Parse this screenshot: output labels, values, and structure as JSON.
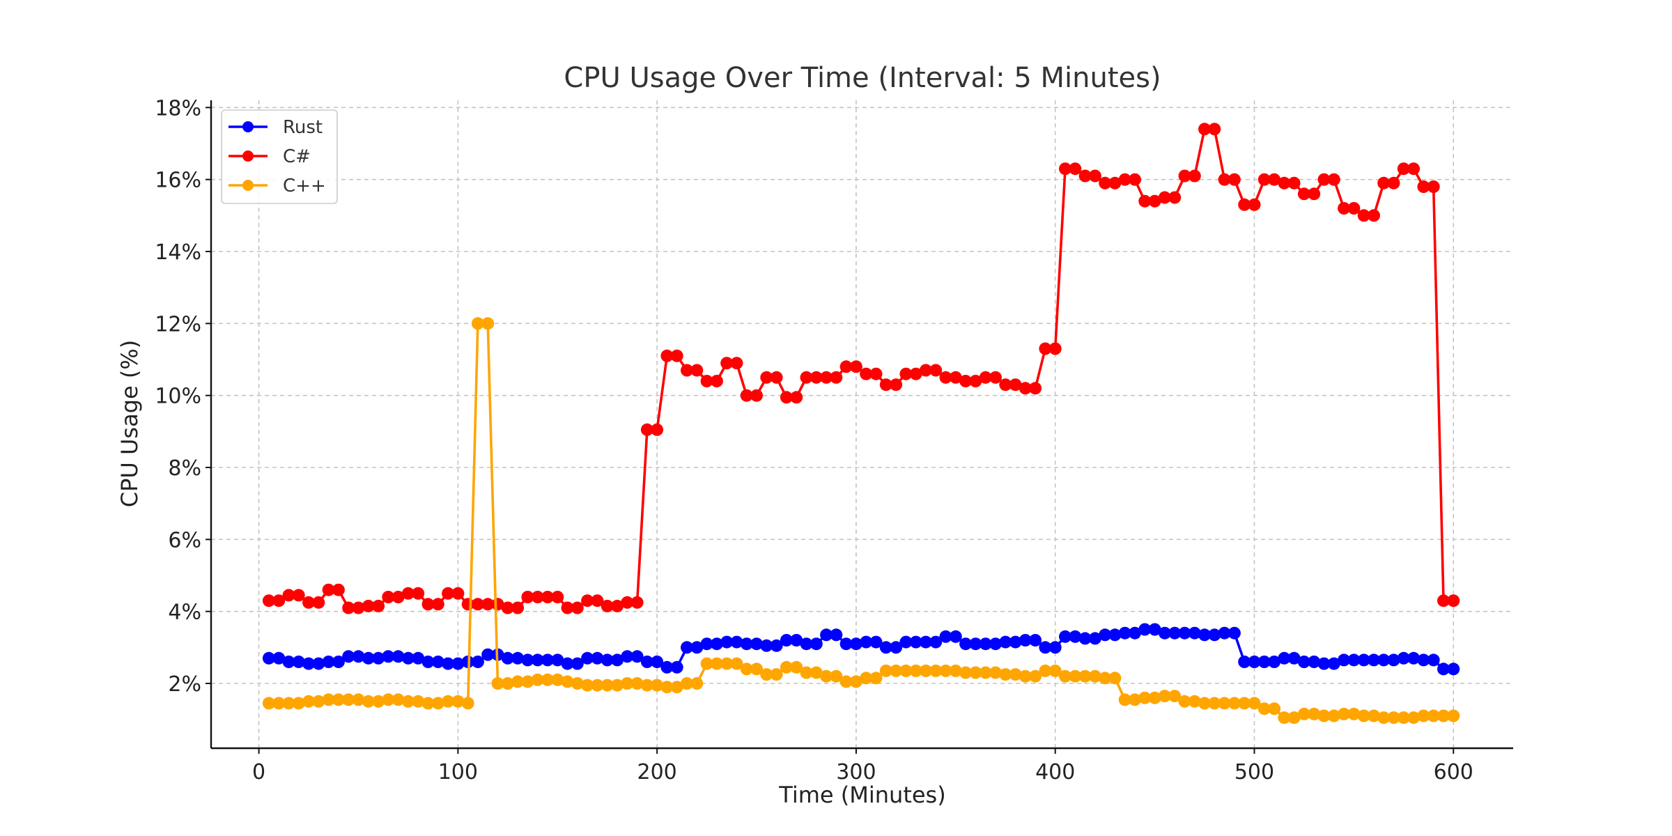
{
  "chart_data": {
    "type": "line",
    "title": "CPU Usage Over Time (Interval: 5 Minutes)",
    "xlabel": "Time (Minutes)",
    "ylabel": "CPU Usage (%)",
    "xlim": [
      -24,
      630
    ],
    "ylim": [
      0.2,
      18.2
    ],
    "x_ticks": [
      0,
      100,
      200,
      300,
      400,
      500,
      600
    ],
    "x_tick_labels": [
      "0",
      "100",
      "200",
      "300",
      "400",
      "500",
      "600"
    ],
    "y_ticks": [
      2,
      4,
      6,
      8,
      10,
      12,
      14,
      16,
      18
    ],
    "y_tick_labels": [
      "2%",
      "4%",
      "6%",
      "8%",
      "10%",
      "12%",
      "14%",
      "16%",
      "18%"
    ],
    "grid": true,
    "legend_position": "top-left",
    "x": [
      5,
      10,
      15,
      20,
      25,
      30,
      35,
      40,
      45,
      50,
      55,
      60,
      65,
      70,
      75,
      80,
      85,
      90,
      95,
      100,
      105,
      110,
      115,
      120,
      125,
      130,
      135,
      140,
      145,
      150,
      155,
      160,
      165,
      170,
      175,
      180,
      185,
      190,
      195,
      200,
      205,
      210,
      215,
      220,
      225,
      230,
      235,
      240,
      245,
      250,
      255,
      260,
      265,
      270,
      275,
      280,
      285,
      290,
      295,
      300,
      305,
      310,
      315,
      320,
      325,
      330,
      335,
      340,
      345,
      350,
      355,
      360,
      365,
      370,
      375,
      380,
      385,
      390,
      395,
      400,
      405,
      410,
      415,
      420,
      425,
      430,
      435,
      440,
      445,
      450,
      455,
      460,
      465,
      470,
      475,
      480,
      485,
      490,
      495,
      500,
      505,
      510,
      515,
      520,
      525,
      530,
      535,
      540,
      545,
      550,
      555,
      560,
      565,
      570,
      575,
      580,
      585,
      590,
      595,
      600
    ],
    "series": [
      {
        "name": "Rust",
        "color": "#0000ff",
        "values": [
          2.7,
          2.7,
          2.6,
          2.6,
          2.55,
          2.55,
          2.6,
          2.6,
          2.75,
          2.75,
          2.7,
          2.7,
          2.75,
          2.75,
          2.7,
          2.7,
          2.6,
          2.6,
          2.55,
          2.55,
          2.6,
          2.6,
          2.8,
          2.8,
          2.7,
          2.7,
          2.65,
          2.65,
          2.65,
          2.65,
          2.55,
          2.55,
          2.7,
          2.7,
          2.65,
          2.65,
          2.75,
          2.75,
          2.6,
          2.6,
          2.45,
          2.45,
          3.0,
          3.0,
          3.1,
          3.1,
          3.15,
          3.15,
          3.1,
          3.1,
          3.05,
          3.05,
          3.2,
          3.2,
          3.1,
          3.1,
          3.35,
          3.35,
          3.1,
          3.1,
          3.15,
          3.15,
          3.0,
          3.0,
          3.15,
          3.15,
          3.15,
          3.15,
          3.3,
          3.3,
          3.1,
          3.1,
          3.1,
          3.1,
          3.15,
          3.15,
          3.2,
          3.2,
          3.0,
          3.0,
          3.3,
          3.3,
          3.25,
          3.25,
          3.35,
          3.35,
          3.4,
          3.4,
          3.5,
          3.5,
          3.4,
          3.4,
          3.4,
          3.4,
          3.35,
          3.35,
          3.4,
          3.4,
          2.6,
          2.6,
          2.6,
          2.6,
          2.7,
          2.7,
          2.6,
          2.6,
          2.55,
          2.55,
          2.65,
          2.65,
          2.65,
          2.65,
          2.65,
          2.65,
          2.7,
          2.7,
          2.65,
          2.65,
          2.4,
          2.4
        ]
      },
      {
        "name": "C#",
        "color": "#ff0000",
        "values": [
          4.3,
          4.3,
          4.45,
          4.45,
          4.25,
          4.25,
          4.6,
          4.6,
          4.1,
          4.1,
          4.15,
          4.15,
          4.4,
          4.4,
          4.5,
          4.5,
          4.2,
          4.2,
          4.5,
          4.5,
          4.2,
          4.2,
          4.2,
          4.2,
          4.1,
          4.1,
          4.4,
          4.4,
          4.4,
          4.4,
          4.1,
          4.1,
          4.3,
          4.3,
          4.15,
          4.15,
          4.25,
          4.25,
          9.05,
          9.05,
          11.1,
          11.1,
          10.7,
          10.7,
          10.4,
          10.4,
          10.9,
          10.9,
          10.0,
          10.0,
          10.5,
          10.5,
          9.95,
          9.95,
          10.5,
          10.5,
          10.5,
          10.5,
          10.8,
          10.8,
          10.6,
          10.6,
          10.3,
          10.3,
          10.6,
          10.6,
          10.7,
          10.7,
          10.5,
          10.5,
          10.4,
          10.4,
          10.5,
          10.5,
          10.3,
          10.3,
          10.2,
          10.2,
          11.3,
          11.3,
          16.3,
          16.3,
          16.1,
          16.1,
          15.9,
          15.9,
          16.0,
          16.0,
          15.4,
          15.4,
          15.5,
          15.5,
          16.1,
          16.1,
          17.4,
          17.4,
          16.0,
          16.0,
          15.3,
          15.3,
          16.0,
          16.0,
          15.9,
          15.9,
          15.6,
          15.6,
          16.0,
          16.0,
          15.2,
          15.2,
          15.0,
          15.0,
          15.9,
          15.9,
          16.3,
          16.3,
          15.8,
          15.8,
          4.3,
          4.3
        ]
      },
      {
        "name": "C++",
        "color": "#ffa500",
        "values": [
          1.45,
          1.45,
          1.45,
          1.45,
          1.5,
          1.5,
          1.55,
          1.55,
          1.55,
          1.55,
          1.5,
          1.5,
          1.55,
          1.55,
          1.5,
          1.5,
          1.45,
          1.45,
          1.5,
          1.5,
          1.45,
          12.0,
          12.0,
          2.0,
          2.0,
          2.05,
          2.05,
          2.1,
          2.1,
          2.1,
          2.05,
          2.0,
          1.95,
          1.95,
          1.95,
          1.95,
          2.0,
          2.0,
          1.95,
          1.95,
          1.9,
          1.9,
          2.0,
          2.0,
          2.55,
          2.55,
          2.55,
          2.55,
          2.4,
          2.4,
          2.25,
          2.25,
          2.45,
          2.45,
          2.3,
          2.3,
          2.2,
          2.2,
          2.05,
          2.05,
          2.15,
          2.15,
          2.35,
          2.35,
          2.35,
          2.35,
          2.35,
          2.35,
          2.35,
          2.35,
          2.3,
          2.3,
          2.3,
          2.3,
          2.25,
          2.25,
          2.2,
          2.2,
          2.35,
          2.35,
          2.2,
          2.2,
          2.2,
          2.2,
          2.15,
          2.15,
          1.55,
          1.55,
          1.6,
          1.6,
          1.65,
          1.65,
          1.5,
          1.5,
          1.45,
          1.45,
          1.45,
          1.45,
          1.45,
          1.45,
          1.3,
          1.3,
          1.05,
          1.05,
          1.15,
          1.15,
          1.1,
          1.1,
          1.15,
          1.15,
          1.1,
          1.1,
          1.05,
          1.05,
          1.05,
          1.05,
          1.1,
          1.1,
          1.1,
          1.1
        ]
      }
    ]
  }
}
